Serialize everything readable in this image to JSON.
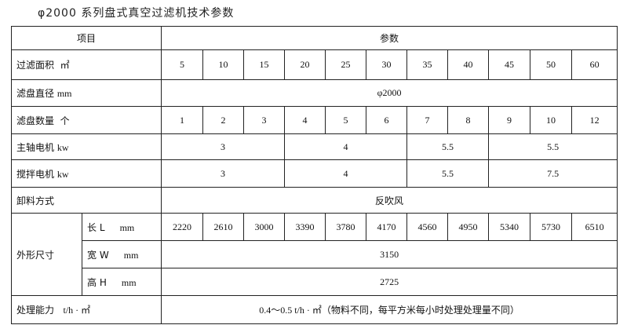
{
  "title": "φ2000 系列盘式真空过滤机技术参数",
  "header": {
    "item": "项目",
    "params": "参数"
  },
  "rows": {
    "area": {
      "label": "过滤面积",
      "unit": "㎡",
      "values": [
        "5",
        "10",
        "15",
        "20",
        "25",
        "30",
        "35",
        "40",
        "45",
        "50",
        "60"
      ]
    },
    "diameter": {
      "label": "滤盘直径",
      "unit": "mm",
      "value": "φ2000"
    },
    "count": {
      "label": "滤盘数量",
      "unit": "个",
      "values": [
        "1",
        "2",
        "3",
        "4",
        "5",
        "6",
        "7",
        "8",
        "9",
        "10",
        "12"
      ]
    },
    "main_motor": {
      "label": "主轴电机",
      "unit": "kw",
      "values": [
        "3",
        "4",
        "5.5",
        "5.5"
      ]
    },
    "stir_motor": {
      "label": "搅拌电机",
      "unit": "kw",
      "values": [
        "3",
        "4",
        "5.5",
        "7.5"
      ]
    },
    "discharge": {
      "label": "卸料方式",
      "value": "反吹风"
    },
    "dimensions": {
      "label": "外形尺寸",
      "length": {
        "label": "长 L",
        "unit": "mm",
        "values": [
          "2220",
          "2610",
          "3000",
          "3390",
          "3780",
          "4170",
          "4560",
          "4950",
          "5340",
          "5730",
          "6510"
        ]
      },
      "width": {
        "label": "宽 W",
        "unit": "mm",
        "value": "3150"
      },
      "height": {
        "label": "高 H",
        "unit": "mm",
        "value": "2725"
      }
    },
    "capacity": {
      "label": "处理能力",
      "unit": "t/h · ㎡",
      "value": "0.4～0.5 t/h · ㎡（物料不同，每平方米每小时处理处理量不同）"
    }
  }
}
